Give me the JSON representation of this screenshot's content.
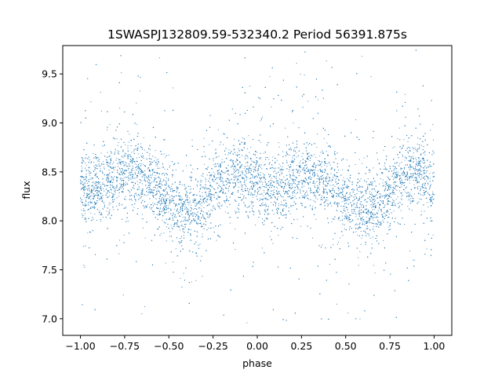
{
  "chart_data": {
    "type": "scatter",
    "title": "1SWASPJ132809.59-532340.2 Period 56391.875s",
    "xlabel": "phase",
    "ylabel": "flux",
    "xlim": [
      -1.1,
      1.1
    ],
    "ylim": [
      6.83,
      9.79
    ],
    "x_ticks": [
      -1.0,
      -0.75,
      -0.5,
      -0.25,
      0.0,
      0.25,
      0.5,
      0.75,
      1.0
    ],
    "x_tick_labels": [
      "−1.00",
      "−0.75",
      "−0.50",
      "−0.25",
      "0.00",
      "0.25",
      "0.50",
      "0.75",
      "1.00"
    ],
    "y_ticks": [
      7.0,
      7.5,
      8.0,
      8.5,
      9.0,
      9.5
    ],
    "y_tick_labels": [
      "7.0",
      "7.5",
      "8.0",
      "8.5",
      "9.0",
      "9.5"
    ],
    "grid": false,
    "marker_color": "#1f77b4",
    "series": [
      {
        "phase_range": [
          -1.0,
          1.0
        ],
        "mean_flux": 8.3,
        "curve_points": {
          "phase": [
            -1.0,
            -0.7,
            -0.4,
            -0.1,
            0.05,
            0.3,
            0.6,
            0.9,
            1.0
          ],
          "flux": [
            8.3,
            8.5,
            8.1,
            8.5,
            8.3,
            8.5,
            8.1,
            8.5,
            8.35
          ]
        },
        "scatter_sigma": 0.17,
        "outlier_range": [
          6.95,
          9.75
        ]
      }
    ]
  }
}
